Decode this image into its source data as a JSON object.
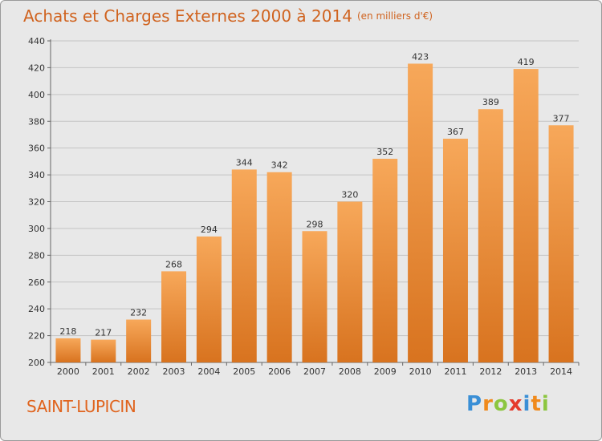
{
  "title": "Achats et Charges Externes 2000 à 2014",
  "subtitle": "(en milliers d'€)",
  "city": "SAINT-LUPICIN",
  "logo": {
    "text": "Proxiti",
    "colors": [
      "#3a8fd6",
      "#f08a1c",
      "#8cc63f",
      "#e53b2c",
      "#3a8fd6",
      "#f08a1c",
      "#8cc63f"
    ]
  },
  "colors": {
    "bar_top": "#f7a85a",
    "bar_bottom": "#d8731f",
    "text": "#d0631f",
    "background": "#e8e8e8"
  },
  "chart_data": {
    "type": "bar",
    "categories": [
      "2000",
      "2001",
      "2002",
      "2003",
      "2004",
      "2005",
      "2006",
      "2007",
      "2008",
      "2009",
      "2010",
      "2011",
      "2012",
      "2013",
      "2014"
    ],
    "values": [
      218,
      217,
      232,
      268,
      294,
      344,
      342,
      298,
      320,
      352,
      423,
      367,
      389,
      419,
      377
    ],
    "ylim": [
      200,
      440
    ],
    "yticks": [
      200,
      220,
      240,
      260,
      280,
      300,
      320,
      340,
      360,
      380,
      400,
      420,
      440
    ],
    "grid": true,
    "legend": "none"
  }
}
